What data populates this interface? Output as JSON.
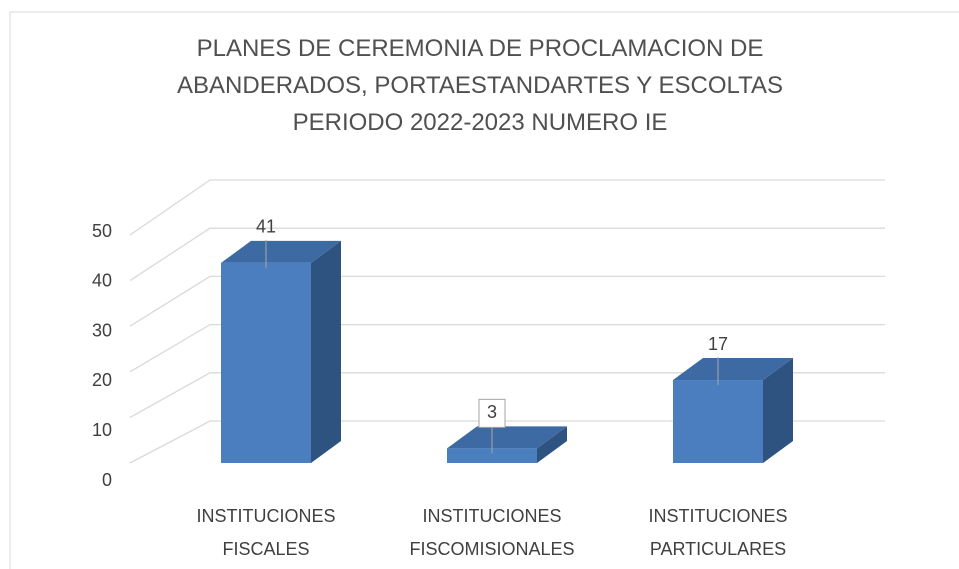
{
  "chart_data": {
    "type": "bar3d",
    "title": "PLANES DE CEREMONIA DE PROCLAMACION DE ABANDERADOS, PORTAESTANDARTES Y ESCOLTAS PERIODO 2022-2023 NUMERO IE",
    "categories": [
      "INSTITUCIONES FISCALES",
      "INSTITUCIONES FISCOMISIONALES",
      "INSTITUCIONES PARTICULARES"
    ],
    "values": [
      41,
      3,
      17
    ],
    "color": "#4a7ebf",
    "ylim": [
      0,
      50
    ],
    "yticks": [
      0,
      10,
      20,
      30,
      40,
      50
    ],
    "grid": true
  }
}
